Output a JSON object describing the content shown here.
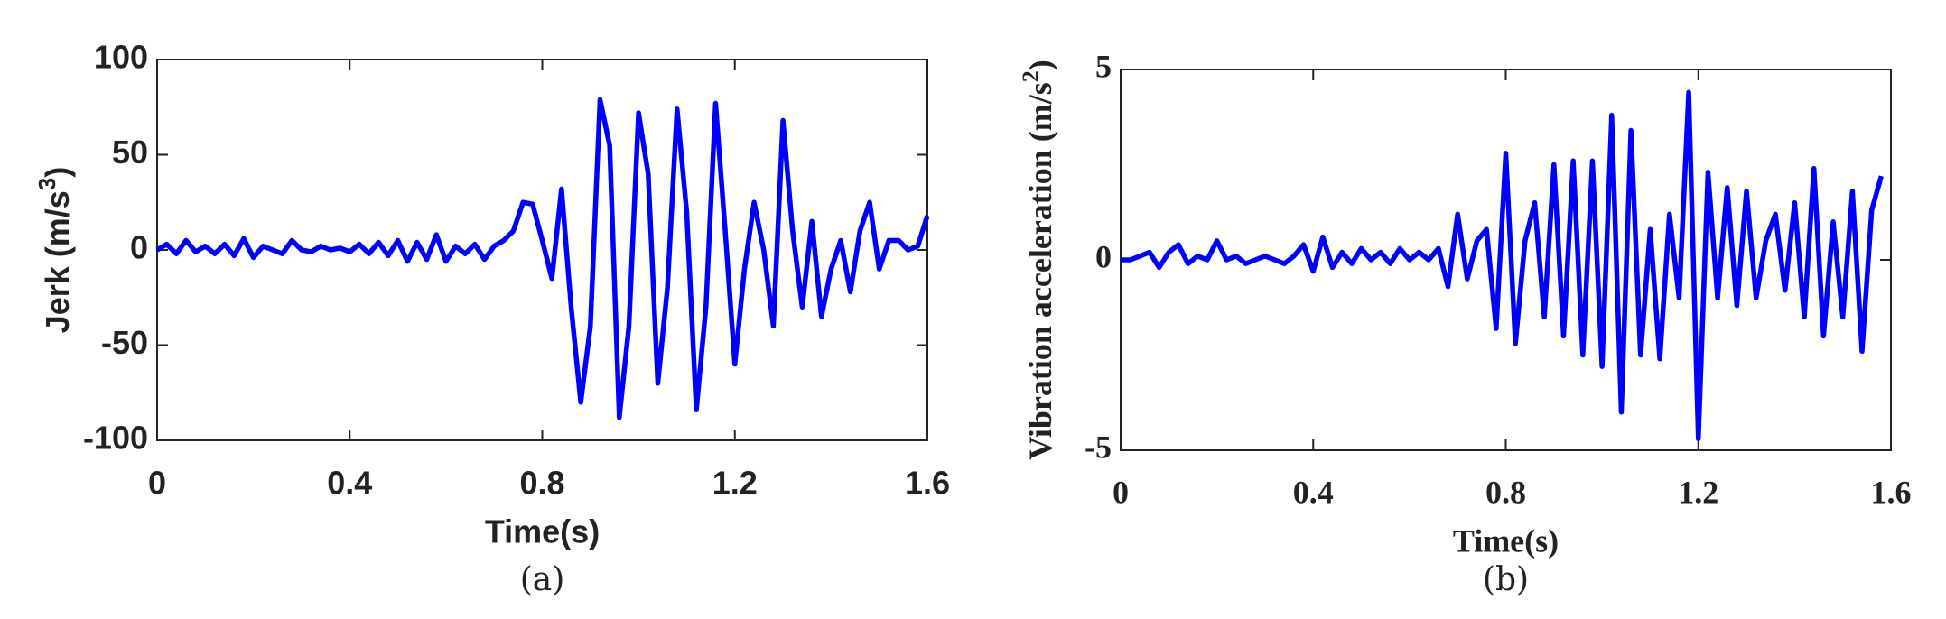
{
  "chart_data": [
    {
      "type": "line",
      "xlabel": "Time(s)",
      "ylabel": {
        "text": "Jerk (m/s",
        "sup": "3",
        "tail": ")"
      },
      "caption": "(a)",
      "xlim": [
        0,
        1.6
      ],
      "xticks": [
        0,
        0.4,
        0.8,
        1.2,
        1.6
      ],
      "ylim": [
        -100,
        100
      ],
      "yticks": [
        -100,
        -50,
        0,
        50,
        100
      ],
      "series": [
        {
          "color": "#0000ff",
          "x": [
            0,
            0.02,
            0.04,
            0.06,
            0.08,
            0.1,
            0.12,
            0.14,
            0.16,
            0.18,
            0.2,
            0.22,
            0.24,
            0.26,
            0.28,
            0.3,
            0.32,
            0.34,
            0.36,
            0.38,
            0.4,
            0.42,
            0.44,
            0.46,
            0.48,
            0.5,
            0.52,
            0.54,
            0.56,
            0.58,
            0.6,
            0.62,
            0.64,
            0.66,
            0.68,
            0.7,
            0.72,
            0.74,
            0.76,
            0.78,
            0.8,
            0.82,
            0.84,
            0.86,
            0.88,
            0.9,
            0.92,
            0.94,
            0.96,
            0.98,
            1.0,
            1.02,
            1.04,
            1.06,
            1.08,
            1.1,
            1.12,
            1.14,
            1.16,
            1.18,
            1.2,
            1.22,
            1.24,
            1.26,
            1.28,
            1.3,
            1.32,
            1.34,
            1.36,
            1.38,
            1.4,
            1.42,
            1.44,
            1.46,
            1.48,
            1.5,
            1.52,
            1.54,
            1.56,
            1.58,
            1.6
          ],
          "values": [
            0,
            3,
            -2,
            5,
            -1,
            2,
            -2,
            3,
            -3,
            6,
            -4,
            2,
            0,
            -2,
            5,
            0,
            -1,
            2,
            0,
            1,
            -1,
            3,
            -2,
            4,
            -3,
            5,
            -6,
            4,
            -5,
            8,
            -6,
            2,
            -2,
            3,
            -5,
            2,
            5,
            10,
            25,
            24,
            5,
            -15,
            32,
            -30,
            -80,
            -40,
            79,
            55,
            -88,
            -40,
            72,
            40,
            -70,
            -20,
            74,
            20,
            -84,
            -30,
            77,
            10,
            -60,
            -10,
            25,
            0,
            -40,
            68,
            10,
            -30,
            15,
            -35,
            -10,
            5,
            -22,
            10,
            25,
            -10,
            5,
            5,
            0,
            2,
            18
          ]
        }
      ]
    },
    {
      "type": "line",
      "xlabel": "Time(s)",
      "ylabel": {
        "text": "Vibration acceleration (m/s",
        "sup": "2",
        "tail": ")"
      },
      "caption": "(b)",
      "xlim": [
        0,
        1.6
      ],
      "xticks": [
        0,
        0.4,
        0.8,
        1.2,
        1.6
      ],
      "ylim": [
        -5,
        5
      ],
      "yticks": [
        -5,
        0,
        5
      ],
      "series": [
        {
          "color": "#0000ff",
          "x": [
            0,
            0.02,
            0.04,
            0.06,
            0.08,
            0.1,
            0.12,
            0.14,
            0.16,
            0.18,
            0.2,
            0.22,
            0.24,
            0.26,
            0.28,
            0.3,
            0.32,
            0.34,
            0.36,
            0.38,
            0.4,
            0.42,
            0.44,
            0.46,
            0.48,
            0.5,
            0.52,
            0.54,
            0.56,
            0.58,
            0.6,
            0.62,
            0.64,
            0.66,
            0.68,
            0.7,
            0.72,
            0.74,
            0.76,
            0.78,
            0.8,
            0.82,
            0.84,
            0.86,
            0.88,
            0.9,
            0.92,
            0.94,
            0.96,
            0.98,
            1.0,
            1.02,
            1.04,
            1.06,
            1.08,
            1.1,
            1.12,
            1.14,
            1.16,
            1.18,
            1.2,
            1.22,
            1.24,
            1.26,
            1.28,
            1.3,
            1.32,
            1.34,
            1.36,
            1.38,
            1.4,
            1.42,
            1.44,
            1.46,
            1.48,
            1.5,
            1.52,
            1.54,
            1.56,
            1.58
          ],
          "values": [
            0,
            0,
            0.1,
            0.2,
            -0.2,
            0.2,
            0.4,
            -0.1,
            0.1,
            0,
            0.5,
            0,
            0.1,
            -0.1,
            0,
            0.1,
            0,
            -0.1,
            0.1,
            0.4,
            -0.3,
            0.6,
            -0.2,
            0.2,
            -0.1,
            0.3,
            0,
            0.2,
            -0.1,
            0.3,
            0,
            0.2,
            0,
            0.3,
            -0.7,
            1.2,
            -0.5,
            0.5,
            0.8,
            -1.8,
            2.8,
            -2.2,
            0.5,
            1.5,
            -1.5,
            2.5,
            -2.0,
            2.6,
            -2.5,
            2.6,
            -2.8,
            3.8,
            -4.0,
            3.4,
            -2.5,
            0.8,
            -2.6,
            1.2,
            -1.0,
            4.4,
            -4.7,
            2.3,
            -1.0,
            1.9,
            -1.2,
            1.8,
            -1.0,
            0.5,
            1.2,
            -0.8,
            1.5,
            -1.5,
            2.4,
            -2.0,
            1.0,
            -1.5,
            1.8,
            -2.4,
            1.3,
            2.2
          ]
        }
      ]
    }
  ]
}
